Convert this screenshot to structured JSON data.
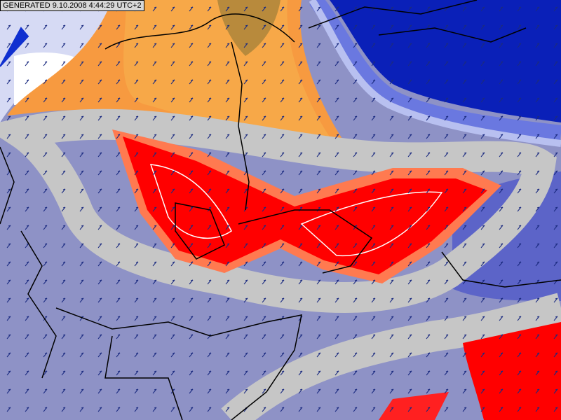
{
  "header": {
    "generated": "GENERATED 9.10.2008 4:44:29 UTC+2"
  }
}
